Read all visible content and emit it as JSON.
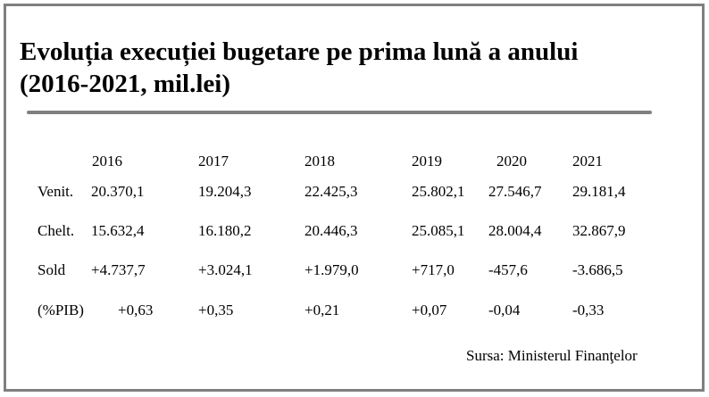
{
  "title": {
    "line1": "Evoluția execuției bugetare pe prima lună a anului",
    "line2": "(2016-2021, mil.lei)"
  },
  "table": {
    "years": [
      "2016",
      "2017",
      "2018",
      "2019",
      "2020",
      "2021"
    ],
    "rows": [
      {
        "label": "Venit.",
        "values": [
          "20.370,1",
          "19.204,3",
          "22.425,3",
          "25.802,1",
          "27.546,7",
          "29.181,4"
        ]
      },
      {
        "label": "Chelt.",
        "values": [
          "15.632,4",
          "16.180,2",
          "20.446,3",
          "25.085,1",
          "28.004,4",
          "32.867,9"
        ]
      },
      {
        "label": "Sold",
        "values": [
          "+4.737,7",
          "+3.024,1",
          "+1.979,0",
          "+717,0",
          "-457,6",
          "-3.686,5"
        ]
      },
      {
        "label": "(%PIB)",
        "values": [
          "+0,63",
          "+0,35",
          "+0,21",
          "+0,07",
          "-0,04",
          "-0,33"
        ]
      }
    ]
  },
  "source": "Sursa: Ministerul Finanţelor"
}
